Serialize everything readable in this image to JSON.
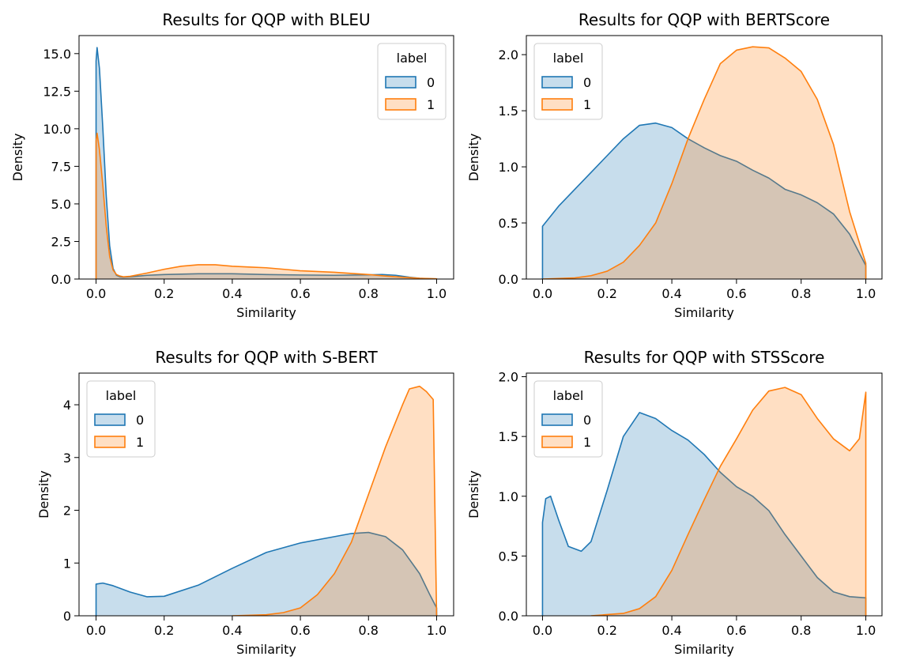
{
  "colors": {
    "series0": "#1f77b4",
    "series0_fill": "#1f77b4",
    "series1": "#ff7f0e",
    "series1_fill": "#ff7f0e",
    "axis": "#000000"
  },
  "chart_data": [
    {
      "type": "area",
      "title": "Results for QQP with BLEU",
      "xlabel": "Similarity",
      "ylabel": "Density",
      "xlim": [
        -0.05,
        1.05
      ],
      "ylim": [
        0,
        16.2
      ],
      "xticks": [
        0.0,
        0.2,
        0.4,
        0.6,
        0.8,
        1.0
      ],
      "xtick_labels": [
        "0.0",
        "0.2",
        "0.4",
        "0.6",
        "0.8",
        "1.0"
      ],
      "yticks": [
        0.0,
        2.5,
        5.0,
        7.5,
        10.0,
        12.5,
        15.0
      ],
      "ytick_labels": [
        "0.0",
        "2.5",
        "5.0",
        "7.5",
        "10.0",
        "12.5",
        "15.0"
      ],
      "legend": {
        "title": "label",
        "position": "upper right",
        "entries": [
          "0",
          "1"
        ]
      },
      "series": [
        {
          "name": "0",
          "x": [
            0.0,
            0.003,
            0.01,
            0.02,
            0.03,
            0.04,
            0.05,
            0.06,
            0.07,
            0.08,
            0.1,
            0.15,
            0.2,
            0.3,
            0.4,
            0.5,
            0.6,
            0.7,
            0.8,
            0.84,
            0.88,
            0.92,
            0.95,
            0.98,
            1.0
          ],
          "y": [
            14.5,
            15.4,
            14.0,
            10.0,
            5.5,
            2.2,
            0.7,
            0.25,
            0.15,
            0.12,
            0.15,
            0.25,
            0.3,
            0.35,
            0.35,
            0.3,
            0.27,
            0.25,
            0.28,
            0.3,
            0.25,
            0.12,
            0.05,
            0.02,
            0.01
          ]
        },
        {
          "name": "1",
          "x": [
            0.0,
            0.003,
            0.01,
            0.02,
            0.03,
            0.04,
            0.05,
            0.06,
            0.07,
            0.08,
            0.1,
            0.15,
            0.2,
            0.25,
            0.3,
            0.35,
            0.4,
            0.45,
            0.5,
            0.55,
            0.6,
            0.7,
            0.8,
            0.85,
            0.9,
            0.95,
            1.0
          ],
          "y": [
            9.2,
            9.7,
            8.6,
            6.2,
            3.5,
            1.5,
            0.6,
            0.3,
            0.2,
            0.15,
            0.18,
            0.4,
            0.65,
            0.85,
            0.95,
            0.95,
            0.85,
            0.8,
            0.75,
            0.65,
            0.55,
            0.45,
            0.3,
            0.2,
            0.12,
            0.05,
            0.02
          ]
        }
      ]
    },
    {
      "type": "area",
      "title": "Results for QQP with BERTScore",
      "xlabel": "Similarity",
      "ylabel": "Density",
      "xlim": [
        -0.05,
        1.05
      ],
      "ylim": [
        0,
        2.17
      ],
      "xticks": [
        0.0,
        0.2,
        0.4,
        0.6,
        0.8,
        1.0
      ],
      "xtick_labels": [
        "0.0",
        "0.2",
        "0.4",
        "0.6",
        "0.8",
        "1.0"
      ],
      "yticks": [
        0.0,
        0.5,
        1.0,
        1.5,
        2.0
      ],
      "ytick_labels": [
        "0.0",
        "0.5",
        "1.0",
        "1.5",
        "2.0"
      ],
      "legend": {
        "title": "label",
        "position": "upper left",
        "entries": [
          "0",
          "1"
        ]
      },
      "series": [
        {
          "name": "0",
          "x": [
            0.0,
            0.05,
            0.1,
            0.15,
            0.2,
            0.25,
            0.3,
            0.35,
            0.4,
            0.45,
            0.5,
            0.55,
            0.6,
            0.65,
            0.7,
            0.75,
            0.8,
            0.85,
            0.9,
            0.95,
            1.0
          ],
          "y": [
            0.47,
            0.65,
            0.8,
            0.95,
            1.1,
            1.25,
            1.37,
            1.39,
            1.35,
            1.25,
            1.17,
            1.1,
            1.05,
            0.97,
            0.9,
            0.8,
            0.75,
            0.68,
            0.58,
            0.4,
            0.12
          ]
        },
        {
          "name": "1",
          "x": [
            0.0,
            0.1,
            0.15,
            0.2,
            0.25,
            0.3,
            0.35,
            0.4,
            0.45,
            0.5,
            0.55,
            0.6,
            0.65,
            0.7,
            0.75,
            0.8,
            0.85,
            0.9,
            0.95,
            1.0
          ],
          "y": [
            0.0,
            0.01,
            0.03,
            0.07,
            0.15,
            0.3,
            0.5,
            0.85,
            1.25,
            1.6,
            1.92,
            2.04,
            2.07,
            2.06,
            1.97,
            1.85,
            1.6,
            1.2,
            0.6,
            0.14
          ]
        }
      ]
    },
    {
      "type": "area",
      "title": "Results for QQP with S-BERT",
      "xlabel": "Similarity",
      "ylabel": "Density",
      "xlim": [
        -0.05,
        1.05
      ],
      "ylim": [
        0,
        4.6
      ],
      "xticks": [
        0.0,
        0.2,
        0.4,
        0.6,
        0.8,
        1.0
      ],
      "xtick_labels": [
        "0.0",
        "0.2",
        "0.4",
        "0.6",
        "0.8",
        "1.0"
      ],
      "yticks": [
        0,
        1,
        2,
        3,
        4
      ],
      "ytick_labels": [
        "0",
        "1",
        "2",
        "3",
        "4"
      ],
      "legend": {
        "title": "label",
        "position": "upper left",
        "entries": [
          "0",
          "1"
        ]
      },
      "series": [
        {
          "name": "0",
          "x": [
            0.0,
            0.02,
            0.05,
            0.1,
            0.15,
            0.2,
            0.3,
            0.4,
            0.5,
            0.6,
            0.7,
            0.75,
            0.8,
            0.85,
            0.9,
            0.95,
            0.98,
            1.0
          ],
          "y": [
            0.6,
            0.62,
            0.57,
            0.45,
            0.36,
            0.37,
            0.58,
            0.9,
            1.2,
            1.38,
            1.5,
            1.56,
            1.58,
            1.5,
            1.25,
            0.8,
            0.4,
            0.15
          ]
        },
        {
          "name": "1",
          "x": [
            0.4,
            0.5,
            0.55,
            0.6,
            0.65,
            0.7,
            0.75,
            0.8,
            0.85,
            0.9,
            0.92,
            0.95,
            0.97,
            0.99,
            1.0
          ],
          "y": [
            0.0,
            0.02,
            0.06,
            0.15,
            0.4,
            0.8,
            1.4,
            2.3,
            3.2,
            4.0,
            4.3,
            4.35,
            4.25,
            4.1,
            0.0
          ]
        }
      ]
    },
    {
      "type": "area",
      "title": "Results for QQP with STSScore",
      "xlabel": "Similarity",
      "ylabel": "Density",
      "xlim": [
        -0.05,
        1.05
      ],
      "ylim": [
        0,
        2.03
      ],
      "xticks": [
        0.0,
        0.2,
        0.4,
        0.6,
        0.8,
        1.0
      ],
      "xtick_labels": [
        "0.0",
        "0.2",
        "0.4",
        "0.6",
        "0.8",
        "1.0"
      ],
      "yticks": [
        0.0,
        0.5,
        1.0,
        1.5,
        2.0
      ],
      "ytick_labels": [
        "0.0",
        "0.5",
        "1.0",
        "1.5",
        "2.0"
      ],
      "legend": {
        "title": "label",
        "position": "upper left",
        "entries": [
          "0",
          "1"
        ]
      },
      "series": [
        {
          "name": "0",
          "x": [
            0.0,
            0.01,
            0.025,
            0.05,
            0.08,
            0.12,
            0.15,
            0.2,
            0.25,
            0.3,
            0.35,
            0.4,
            0.45,
            0.5,
            0.55,
            0.6,
            0.65,
            0.7,
            0.75,
            0.8,
            0.85,
            0.9,
            0.95,
            1.0
          ],
          "y": [
            0.78,
            0.98,
            1.0,
            0.8,
            0.58,
            0.54,
            0.62,
            1.05,
            1.5,
            1.7,
            1.65,
            1.55,
            1.47,
            1.35,
            1.2,
            1.08,
            1.0,
            0.88,
            0.68,
            0.5,
            0.32,
            0.2,
            0.16,
            0.15
          ]
        },
        {
          "name": "1",
          "x": [
            0.15,
            0.25,
            0.3,
            0.35,
            0.4,
            0.45,
            0.5,
            0.55,
            0.6,
            0.65,
            0.7,
            0.75,
            0.8,
            0.85,
            0.9,
            0.95,
            0.98,
            1.0
          ],
          "y": [
            0.0,
            0.02,
            0.06,
            0.16,
            0.38,
            0.68,
            0.97,
            1.25,
            1.48,
            1.72,
            1.88,
            1.91,
            1.85,
            1.65,
            1.48,
            1.38,
            1.48,
            1.87
          ]
        }
      ]
    }
  ]
}
